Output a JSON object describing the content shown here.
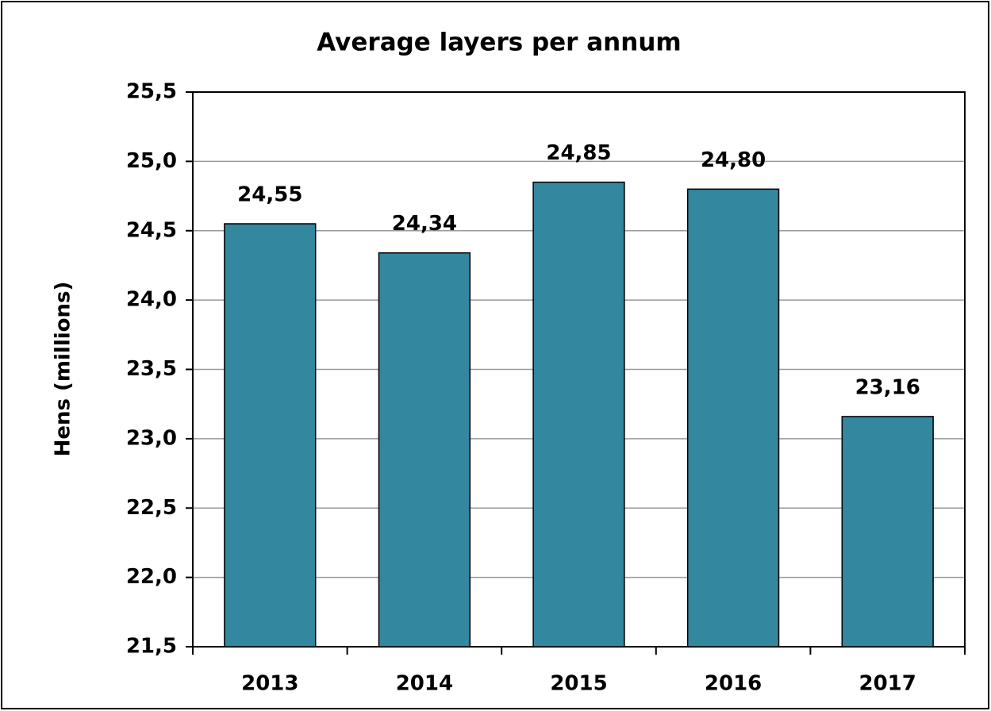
{
  "chart_data": {
    "type": "bar",
    "title": "Average layers per annum",
    "y_label": "Hens (millions)",
    "categories": [
      "2013",
      "2014",
      "2015",
      "2016",
      "2017"
    ],
    "values": [
      24.55,
      24.34,
      24.85,
      24.8,
      23.16
    ],
    "value_labels": [
      "24,55",
      "24,34",
      "24,85",
      "24,80",
      "23,16"
    ],
    "color": "#33879f",
    "ylim": [
      21.5,
      25.5
    ],
    "yticks": [
      {
        "value": 21.5,
        "label": "21,5"
      },
      {
        "value": 22.0,
        "label": "22,0"
      },
      {
        "value": 22.5,
        "label": "22,5"
      },
      {
        "value": 23.0,
        "label": "23,0"
      },
      {
        "value": 23.5,
        "label": "23,5"
      },
      {
        "value": 24.0,
        "label": "24,0"
      },
      {
        "value": 24.5,
        "label": "24,5"
      },
      {
        "value": 25.0,
        "label": "25,0"
      },
      {
        "value": 25.5,
        "label": "25,5"
      }
    ],
    "grid": true
  }
}
